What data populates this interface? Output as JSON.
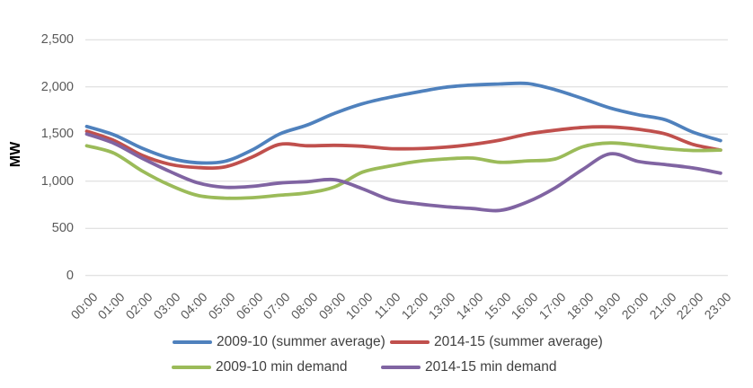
{
  "chart_data": {
    "type": "line",
    "title": "",
    "xlabel": "",
    "ylabel": "MW",
    "ylim": [
      0,
      2500
    ],
    "ytick_step": 500,
    "ytick_labels": [
      "0",
      "500",
      "1,000",
      "1,500",
      "2,000",
      "2,500"
    ],
    "grid": "horizontal-only",
    "legend_position": "bottom",
    "x": [
      "00:00",
      "01:00",
      "02:00",
      "03:00",
      "04:00",
      "05:00",
      "06:00",
      "07:00",
      "08:00",
      "09:00",
      "10:00",
      "11:00",
      "12:00",
      "13:00",
      "14:00",
      "15:00",
      "16:00",
      "17:00",
      "18:00",
      "19:00",
      "20:00",
      "21:00",
      "22:00",
      "23:00"
    ],
    "series": [
      {
        "name": "2009-10 (summer average)",
        "color": "#4F81BD",
        "values": [
          1580,
          1490,
          1350,
          1245,
          1195,
          1210,
          1330,
          1500,
          1595,
          1720,
          1820,
          1890,
          1945,
          1995,
          2020,
          2030,
          2035,
          1970,
          1875,
          1775,
          1705,
          1650,
          1520,
          1430
        ]
      },
      {
        "name": "2014-15 (summer average)",
        "color": "#C0504D",
        "values": [
          1530,
          1430,
          1275,
          1180,
          1145,
          1150,
          1255,
          1390,
          1375,
          1380,
          1370,
          1345,
          1345,
          1360,
          1390,
          1435,
          1500,
          1540,
          1570,
          1575,
          1550,
          1500,
          1390,
          1330
        ]
      },
      {
        "name": "2009-10 min demand",
        "color": "#9BBB59",
        "values": [
          1375,
          1295,
          1110,
          960,
          850,
          820,
          825,
          850,
          875,
          940,
          1095,
          1160,
          1210,
          1235,
          1245,
          1200,
          1215,
          1235,
          1365,
          1405,
          1380,
          1345,
          1325,
          1330
        ]
      },
      {
        "name": "2014-15 min demand",
        "color": "#8064A2",
        "values": [
          1500,
          1400,
          1245,
          1105,
          985,
          935,
          945,
          980,
          995,
          1015,
          920,
          805,
          760,
          730,
          710,
          690,
          780,
          930,
          1125,
          1290,
          1210,
          1175,
          1140,
          1085
        ]
      }
    ]
  }
}
